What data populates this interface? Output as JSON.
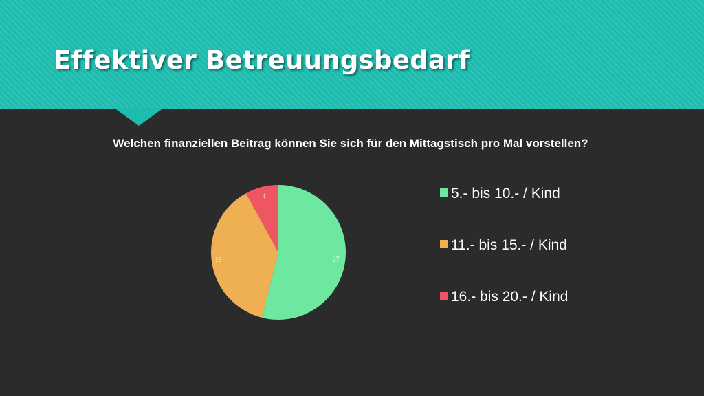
{
  "slide": {
    "title": "Effektiver Betreuungsbedarf"
  },
  "chart_data": {
    "type": "pie",
    "title": "Welchen finanziellen Beitrag können Sie sich für den Mittagstisch pro Mal vorstellen?",
    "categories": [
      "5.- bis 10.- / Kind",
      "11.- bis 15.- / Kind",
      "16.- bis 20.- / Kind"
    ],
    "values": [
      27,
      19,
      4
    ],
    "colors": [
      "#6ee7a0",
      "#eeb052",
      "#ee5664"
    ],
    "data_label_color": "#ffffff",
    "legend": "right"
  }
}
